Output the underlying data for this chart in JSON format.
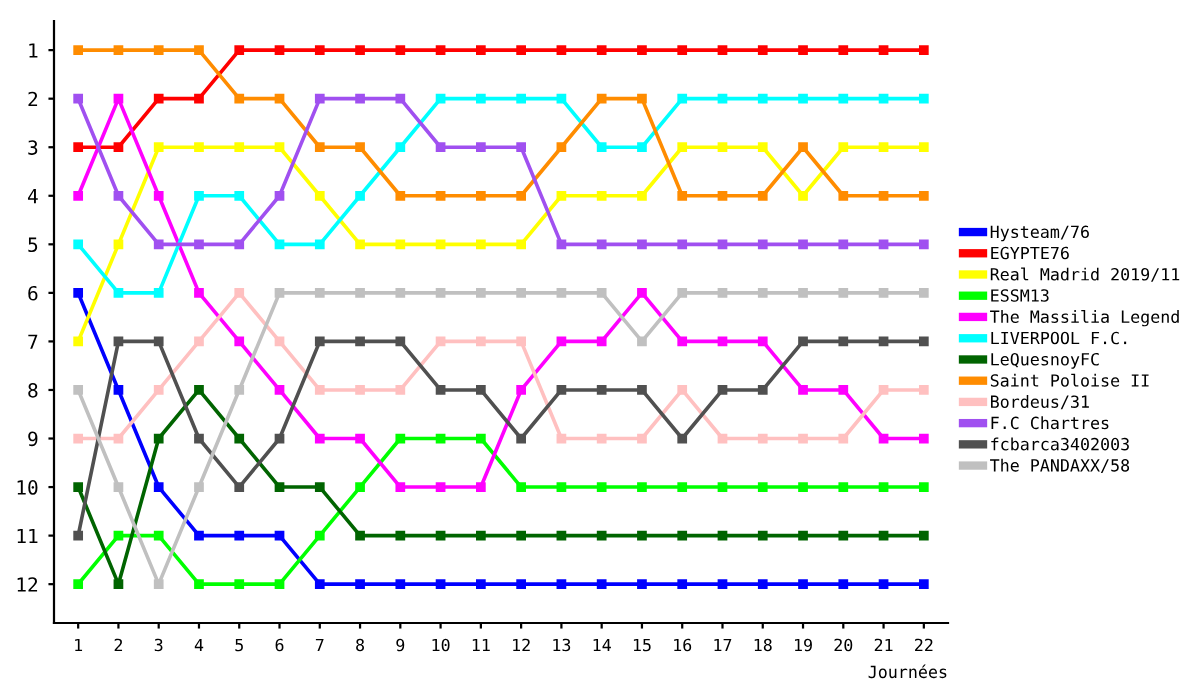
{
  "chart_data": {
    "type": "line",
    "xlabel": "Journées",
    "x": [
      1,
      2,
      3,
      4,
      5,
      6,
      7,
      8,
      9,
      10,
      11,
      12,
      13,
      14,
      15,
      16,
      17,
      18,
      19,
      20,
      21,
      22
    ],
    "xlim": [
      0.4,
      22.6
    ],
    "xticks": [
      1,
      2,
      3,
      4,
      5,
      6,
      7,
      8,
      9,
      10,
      11,
      12,
      13,
      14,
      15,
      16,
      17,
      18,
      19,
      20,
      21,
      22
    ],
    "ylim": [
      12.8,
      0.4
    ],
    "yticks": [
      1,
      2,
      3,
      4,
      5,
      6,
      7,
      8,
      9,
      10,
      11,
      12
    ],
    "grid": false,
    "legend": "right",
    "marker": "square",
    "line_style": "solid",
    "series": [
      {
        "name": "Hysteam/76",
        "color": "#0000ff",
        "values": [
          6,
          8,
          10,
          11,
          11,
          11,
          12,
          12,
          12,
          12,
          12,
          12,
          12,
          12,
          12,
          12,
          12,
          12,
          12,
          12,
          12,
          12
        ]
      },
      {
        "name": "EGYPTE76",
        "color": "#ff0000",
        "values": [
          3,
          3,
          2,
          2,
          1,
          1,
          1,
          1,
          1,
          1,
          1,
          1,
          1,
          1,
          1,
          1,
          1,
          1,
          1,
          1,
          1,
          1
        ]
      },
      {
        "name": "Real Madrid 2019/11",
        "color": "#ffff00",
        "values": [
          7,
          5,
          3,
          3,
          3,
          3,
          4,
          5,
          5,
          5,
          5,
          5,
          4,
          4,
          4,
          3,
          3,
          3,
          4,
          3,
          3,
          3
        ]
      },
      {
        "name": "ESSM13",
        "color": "#00ff00",
        "values": [
          12,
          11,
          11,
          12,
          12,
          12,
          11,
          10,
          9,
          9,
          9,
          10,
          10,
          10,
          10,
          10,
          10,
          10,
          10,
          10,
          10,
          10
        ]
      },
      {
        "name": "The Massilia Legend",
        "color": "#ff00ff",
        "values": [
          4,
          2,
          4,
          6,
          7,
          8,
          9,
          9,
          10,
          10,
          10,
          8,
          7,
          7,
          6,
          7,
          7,
          7,
          8,
          8,
          9,
          9
        ]
      },
      {
        "name": "LIVERPOOL F.C.",
        "color": "#00ffff",
        "values": [
          5,
          6,
          6,
          4,
          4,
          5,
          5,
          4,
          3,
          2,
          2,
          2,
          2,
          3,
          3,
          2,
          2,
          2,
          2,
          2,
          2,
          2
        ]
      },
      {
        "name": "LeQuesnoyFC",
        "color": "#006400",
        "values": [
          10,
          12,
          9,
          8,
          9,
          10,
          10,
          11,
          11,
          11,
          11,
          11,
          11,
          11,
          11,
          11,
          11,
          11,
          11,
          11,
          11,
          11
        ]
      },
      {
        "name": "Saint Poloise II",
        "color": "#ff8c00",
        "values": [
          1,
          1,
          1,
          1,
          2,
          2,
          3,
          3,
          4,
          4,
          4,
          4,
          3,
          2,
          2,
          4,
          4,
          4,
          3,
          4,
          4,
          4
        ]
      },
      {
        "name": "Bordeus/31",
        "color": "#ffc0c0",
        "values": [
          9,
          9,
          8,
          7,
          6,
          7,
          8,
          8,
          8,
          7,
          7,
          7,
          9,
          9,
          9,
          8,
          9,
          9,
          9,
          9,
          8,
          8
        ]
      },
      {
        "name": "F.C Chartres",
        "color": "#a050f0",
        "values": [
          2,
          4,
          5,
          5,
          5,
          4,
          2,
          2,
          2,
          3,
          3,
          3,
          5,
          5,
          5,
          5,
          5,
          5,
          5,
          5,
          5,
          5
        ]
      },
      {
        "name": "fcbarca3402003",
        "color": "#505050",
        "values": [
          11,
          7,
          7,
          9,
          10,
          9,
          7,
          7,
          7,
          8,
          8,
          9,
          8,
          8,
          8,
          9,
          8,
          8,
          7,
          7,
          7,
          7
        ]
      },
      {
        "name": "The PANDAXX/58",
        "color": "#c0c0c0",
        "values": [
          8,
          10,
          12,
          10,
          8,
          6,
          6,
          6,
          6,
          6,
          6,
          6,
          6,
          6,
          7,
          6,
          6,
          6,
          6,
          6,
          6,
          6
        ]
      }
    ]
  }
}
